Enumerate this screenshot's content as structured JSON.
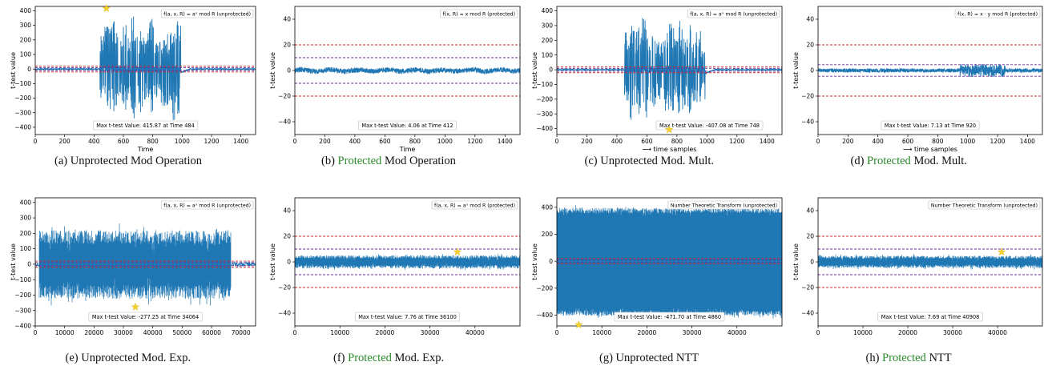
{
  "chart_data": [
    {
      "type": "line",
      "panel": "a",
      "caption": {
        "label": "(a)",
        "prefix": "Unprotected",
        "prefix_green": false,
        "rest": "Mod Operation"
      },
      "legend_text": "f(a, x, R) = aˣ mod R (unprotected)",
      "xlabel": "Time",
      "ylabel": "t-test value",
      "xlim": [
        0,
        1500
      ],
      "ylim": [
        -450,
        430
      ],
      "xticks": [
        0,
        200,
        400,
        600,
        800,
        1000,
        1200,
        1400
      ],
      "xtick_labels": [
        "0",
        "200",
        "400",
        "600",
        "800",
        "1000",
        "1200",
        "1400"
      ],
      "yticks": [
        -400,
        -300,
        -200,
        -100,
        0,
        100,
        200,
        300,
        400
      ],
      "ytick_labels": [
        "−400",
        "−300",
        "−200",
        "−100",
        "0",
        "100",
        "200",
        "300",
        "400"
      ],
      "red_lines": [
        20,
        -20
      ],
      "purple_lines": [
        10,
        -10
      ],
      "signal": {
        "kind": "spiky",
        "n": 1500,
        "active_range": [
          440,
          990
        ],
        "active_amp": 400,
        "baseline_amp": 4,
        "active_segments": 18
      },
      "max_marker": {
        "x": 484,
        "y": 415.87
      },
      "annotation": "Max t-test Value: 415.87 at Time 484"
    },
    {
      "type": "line",
      "panel": "b",
      "caption": {
        "label": "(b)",
        "prefix": "Protected",
        "prefix_green": true,
        "rest": "Mod Operation"
      },
      "legend_text": "f(x, R) = x mod R (protected)",
      "xlabel": "Time",
      "ylabel": "t-test value",
      "xlim": [
        0,
        1500
      ],
      "ylim": [
        -50,
        50
      ],
      "xticks": [
        0,
        200,
        400,
        600,
        800,
        1000,
        1200,
        1400
      ],
      "xtick_labels": [
        "0",
        "200",
        "400",
        "600",
        "800",
        "1000",
        "1200",
        "1400"
      ],
      "yticks": [
        -40,
        -20,
        0,
        20,
        40
      ],
      "ytick_labels": [
        "−40",
        "−20",
        "0",
        "20",
        "40"
      ],
      "red_lines": [
        20,
        -20
      ],
      "purple_lines": [
        10,
        -10
      ],
      "signal": {
        "kind": "noise",
        "n": 1500,
        "amp": 2.0
      },
      "max_marker": null,
      "annotation": "Max t-test Value: 4.06 at Time 412"
    },
    {
      "type": "line",
      "panel": "c",
      "caption": {
        "label": "(c)",
        "prefix": "Unprotected",
        "prefix_green": false,
        "rest": "Mod. Mult."
      },
      "legend_text": "f(a, x, R) = aˣ mod R (unprotected)",
      "xlabel": "⟶ time samples",
      "ylabel": "t-test value",
      "xlim": [
        0,
        1500
      ],
      "ylim": [
        -440,
        430
      ],
      "xticks": [
        0,
        200,
        400,
        600,
        800,
        1000,
        1200,
        1400
      ],
      "xtick_labels": [
        "0",
        "200",
        "400",
        "600",
        "800",
        "1000",
        "1200",
        "1400"
      ],
      "yticks": [
        -400,
        -300,
        -200,
        -100,
        0,
        100,
        200,
        300,
        400
      ],
      "ytick_labels": [
        "−400",
        "−300",
        "−200",
        "−100",
        "0",
        "100",
        "200",
        "300",
        "400"
      ],
      "red_lines": [
        20,
        -20
      ],
      "purple_lines": [
        10,
        -10
      ],
      "signal": {
        "kind": "spiky",
        "n": 1500,
        "active_range": [
          450,
          990
        ],
        "active_amp": 380,
        "baseline_amp": 4,
        "active_segments": 18
      },
      "max_marker": {
        "x": 748,
        "y": -407.08
      },
      "annotation": "Max t-test Value: -407.08 at Time 748"
    },
    {
      "type": "line",
      "panel": "d",
      "caption": {
        "label": "(d)",
        "prefix": "Protected",
        "prefix_green": true,
        "rest": "Mod. Mult."
      },
      "legend_text": "f(x, R) = x · y mod R (protected)",
      "xlabel": "⟶ time samples",
      "ylabel": "t-test value",
      "xlim": [
        0,
        1500
      ],
      "ylim": [
        -50,
        50
      ],
      "xticks": [
        0,
        200,
        400,
        600,
        800,
        1000,
        1200,
        1400
      ],
      "xtick_labels": [
        "0",
        "200",
        "400",
        "600",
        "800",
        "1000",
        "1200",
        "1400"
      ],
      "yticks": [
        -40,
        -20,
        0,
        20,
        40
      ],
      "ytick_labels": [
        "−40",
        "−20",
        "0",
        "20",
        "40"
      ],
      "red_lines": [
        20,
        -20
      ],
      "purple_lines": [
        4.5,
        -4.5
      ],
      "signal": {
        "kind": "noise_burst",
        "n": 1500,
        "amp": 1.5,
        "burst_range": [
          950,
          1250
        ],
        "burst_amp": 5
      },
      "max_marker": null,
      "annotation": "Max t-test Value: 7.13 at Time 920"
    },
    {
      "type": "area",
      "panel": "e",
      "caption": {
        "label": "(e)",
        "prefix": "Unprotected",
        "prefix_green": false,
        "rest": "Mod. Exp."
      },
      "legend_text": "f(a, x, R) = aˣ mod R (unprotected)",
      "xlabel": "",
      "ylabel": "t-test value",
      "xlim": [
        0,
        75000
      ],
      "ylim": [
        -400,
        430
      ],
      "xticks": [
        0,
        10000,
        20000,
        30000,
        40000,
        50000,
        60000,
        70000
      ],
      "xtick_labels": [
        "0",
        "10000",
        "20000",
        "30000",
        "40000",
        "50000",
        "60000",
        "70000"
      ],
      "yticks": [
        -400,
        -300,
        -200,
        -100,
        0,
        100,
        200,
        300,
        400
      ],
      "ytick_labels": [
        "−400",
        "−300",
        "−200",
        "−100",
        "0",
        "100",
        "200",
        "300",
        "400"
      ],
      "red_lines": [
        20,
        -20
      ],
      "purple_lines": [
        10,
        -10
      ],
      "signal": {
        "kind": "band",
        "range": [
          1500,
          66500
        ],
        "upper": 175,
        "lower": -180,
        "spread": 45,
        "tail_amp": 15
      },
      "max_marker": {
        "x": 34064,
        "y": -277.25
      },
      "annotation": "Max t-test Value: -277.25 at Time 34064"
    },
    {
      "type": "line",
      "panel": "f",
      "caption": {
        "label": "(f)",
        "prefix": "Protected",
        "prefix_green": true,
        "rest": "Mod. Exp."
      },
      "legend_text": "f(a, x, R) = aˣ mod R (protected)",
      "xlabel": "",
      "ylabel": "t-test value",
      "xlim": [
        0,
        50000
      ],
      "ylim": [
        -50,
        50
      ],
      "xticks": [
        0,
        10000,
        20000,
        30000,
        40000
      ],
      "xtick_labels": [
        "0",
        "10000",
        "20000",
        "30000",
        "40000"
      ],
      "yticks": [
        -40,
        -20,
        0,
        20,
        40
      ],
      "ytick_labels": [
        "−40",
        "−20",
        "0",
        "20",
        "40"
      ],
      "red_lines": [
        20,
        -20
      ],
      "purple_lines": [
        10,
        -10
      ],
      "signal": {
        "kind": "bandsmall",
        "upper": 3.8,
        "lower": -3.8,
        "spread": 1.3
      },
      "max_marker": {
        "x": 36100,
        "y": 7.76
      },
      "annotation": "Max t-test Value: 7.76 at Time 36100"
    },
    {
      "type": "area",
      "panel": "g",
      "caption": {
        "label": "(g)",
        "prefix": "Unprotected",
        "prefix_green": false,
        "rest": "NTT"
      },
      "legend_text": "Number Theoretic Transform (unprotected)",
      "xlabel": "",
      "ylabel": "t-test value",
      "xlim": [
        0,
        50000
      ],
      "ylim": [
        -480,
        470
      ],
      "xticks": [
        0,
        10000,
        20000,
        30000,
        40000
      ],
      "xtick_labels": [
        "0",
        "10000",
        "20000",
        "30000",
        "40000"
      ],
      "yticks": [
        -400,
        -200,
        0,
        200,
        400
      ],
      "ytick_labels": [
        "−400",
        "−200",
        "0",
        "200",
        "400"
      ],
      "red_lines": [
        20,
        -20
      ],
      "purple_lines": [
        10,
        -10
      ],
      "signal": {
        "kind": "band",
        "range": [
          0,
          50000
        ],
        "upper": 375,
        "lower": -385,
        "spread": 20,
        "tail_amp": 0
      },
      "max_marker": {
        "x": 4860,
        "y": -471.7
      },
      "annotation": "Max t-test Value: -471.70 at Time 4860"
    },
    {
      "type": "line",
      "panel": "h",
      "caption": {
        "label": "(h)",
        "prefix": "Protected",
        "prefix_green": true,
        "rest": "NTT"
      },
      "legend_text": "Number Theoretic Transform (unprotected)",
      "xlabel": "",
      "ylabel": "t-test value",
      "xlim": [
        0,
        50000
      ],
      "ylim": [
        -50,
        50
      ],
      "xticks": [
        0,
        10000,
        20000,
        30000,
        40000
      ],
      "xtick_labels": [
        "0",
        "10000",
        "20000",
        "30000",
        "40000"
      ],
      "yticks": [
        -40,
        -20,
        0,
        20,
        40
      ],
      "ytick_labels": [
        "−40",
        "−20",
        "0",
        "20",
        "40"
      ],
      "red_lines": [
        20,
        -20
      ],
      "purple_lines": [
        10,
        -10
      ],
      "signal": {
        "kind": "bandsmall",
        "upper": 3.6,
        "lower": -3.6,
        "spread": 1.2
      },
      "max_marker": {
        "x": 40908,
        "y": 7.69
      },
      "annotation": "Max t-test Value: 7.69 at Time 40908"
    }
  ],
  "colors": {
    "line": "#1f77b4",
    "red_threshold": "#d62728",
    "purple_threshold": "#6a2c9a",
    "marker": "#f5d130",
    "protected_caption": "#2a8a2a"
  }
}
